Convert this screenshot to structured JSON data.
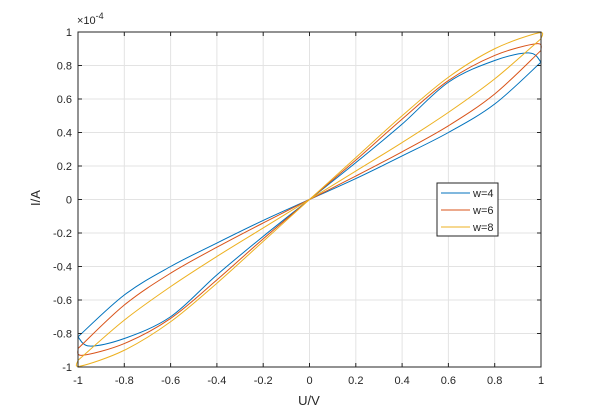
{
  "chart_data": {
    "type": "line",
    "xlabel": "U/V",
    "ylabel": "I/A",
    "xlim": [
      -1,
      1
    ],
    "ylim": [
      -0.0001,
      0.0001
    ],
    "y_exponent_label": "×10",
    "y_exponent_power": "-4",
    "grid": true,
    "legend_position": "right-middle",
    "x_ticks": [
      "-1",
      "-0.8",
      "-0.6",
      "-0.4",
      "-0.2",
      "0",
      "0.2",
      "0.4",
      "0.6",
      "0.8",
      "1"
    ],
    "y_ticks": [
      "-1",
      "-0.8",
      "-0.6",
      "-0.4",
      "-0.2",
      "0",
      "0.2",
      "0.4",
      "0.6",
      "0.8",
      "1"
    ],
    "series": [
      {
        "name": "w=4",
        "color": "#0072BD",
        "upper_branch": [
          [
            -1,
            -8.2e-05
          ],
          [
            -0.8,
            -5.7e-05
          ],
          [
            -0.6,
            -4e-05
          ],
          [
            -0.4,
            -2.6e-05
          ],
          [
            -0.2,
            -1.25e-05
          ],
          [
            0,
            0
          ],
          [
            0.2,
            1.25e-05
          ],
          [
            0.4,
            2.6e-05
          ],
          [
            0.6,
            4e-05
          ],
          [
            0.8,
            5.7e-05
          ],
          [
            1,
            8.2e-05
          ]
        ],
        "lower_branch": [
          [
            1,
            8.2e-05
          ],
          [
            0.95,
            8.75e-05
          ],
          [
            0.8,
            8.3e-05
          ],
          [
            0.6,
            7e-05
          ],
          [
            0.4,
            4.5e-05
          ],
          [
            0.2,
            2.2e-05
          ],
          [
            0,
            0
          ],
          [
            -0.2,
            -2.2e-05
          ],
          [
            -0.4,
            -4.5e-05
          ],
          [
            -0.6,
            -7e-05
          ],
          [
            -0.8,
            -8.3e-05
          ],
          [
            -0.95,
            -8.75e-05
          ],
          [
            -1,
            -8.2e-05
          ]
        ]
      },
      {
        "name": "w=6",
        "color": "#D95319",
        "upper_branch": [
          [
            -1,
            -8.9e-05
          ],
          [
            -0.8,
            -6.3e-05
          ],
          [
            -0.6,
            -4.4e-05
          ],
          [
            -0.4,
            -2.85e-05
          ],
          [
            -0.2,
            -1.4e-05
          ],
          [
            0,
            0
          ],
          [
            0.2,
            1.4e-05
          ],
          [
            0.4,
            2.85e-05
          ],
          [
            0.6,
            4.4e-05
          ],
          [
            0.8,
            6.3e-05
          ],
          [
            1,
            8.9e-05
          ]
        ],
        "lower_branch": [
          [
            1,
            8.9e-05
          ],
          [
            0.98,
            9.3e-05
          ],
          [
            0.8,
            8.6e-05
          ],
          [
            0.6,
            7.1e-05
          ],
          [
            0.4,
            4.8e-05
          ],
          [
            0.2,
            2.35e-05
          ],
          [
            0,
            0
          ],
          [
            -0.2,
            -2.35e-05
          ],
          [
            -0.4,
            -4.8e-05
          ],
          [
            -0.6,
            -7.1e-05
          ],
          [
            -0.8,
            -8.6e-05
          ],
          [
            -0.98,
            -9.3e-05
          ],
          [
            -1,
            -8.9e-05
          ]
        ]
      },
      {
        "name": "w=8",
        "color": "#EDB120",
        "upper_branch": [
          [
            -1,
            -9.6e-05
          ],
          [
            -0.8,
            -7.2e-05
          ],
          [
            -0.6,
            -5.2e-05
          ],
          [
            -0.4,
            -3.4e-05
          ],
          [
            -0.2,
            -1.7e-05
          ],
          [
            0,
            0
          ],
          [
            0.2,
            1.7e-05
          ],
          [
            0.4,
            3.4e-05
          ],
          [
            0.6,
            5.2e-05
          ],
          [
            0.8,
            7.2e-05
          ],
          [
            1,
            9.6e-05
          ]
        ],
        "lower_branch": [
          [
            1,
            9.6e-05
          ],
          [
            0.99,
            9.95e-05
          ],
          [
            0.8,
            9e-05
          ],
          [
            0.6,
            7.3e-05
          ],
          [
            0.4,
            5e-05
          ],
          [
            0.2,
            2.5e-05
          ],
          [
            0,
            0
          ],
          [
            -0.2,
            -2.5e-05
          ],
          [
            -0.4,
            -5e-05
          ],
          [
            -0.6,
            -7.3e-05
          ],
          [
            -0.8,
            -9e-05
          ],
          [
            -0.99,
            -9.95e-05
          ],
          [
            -1,
            -9.6e-05
          ]
        ]
      }
    ]
  }
}
